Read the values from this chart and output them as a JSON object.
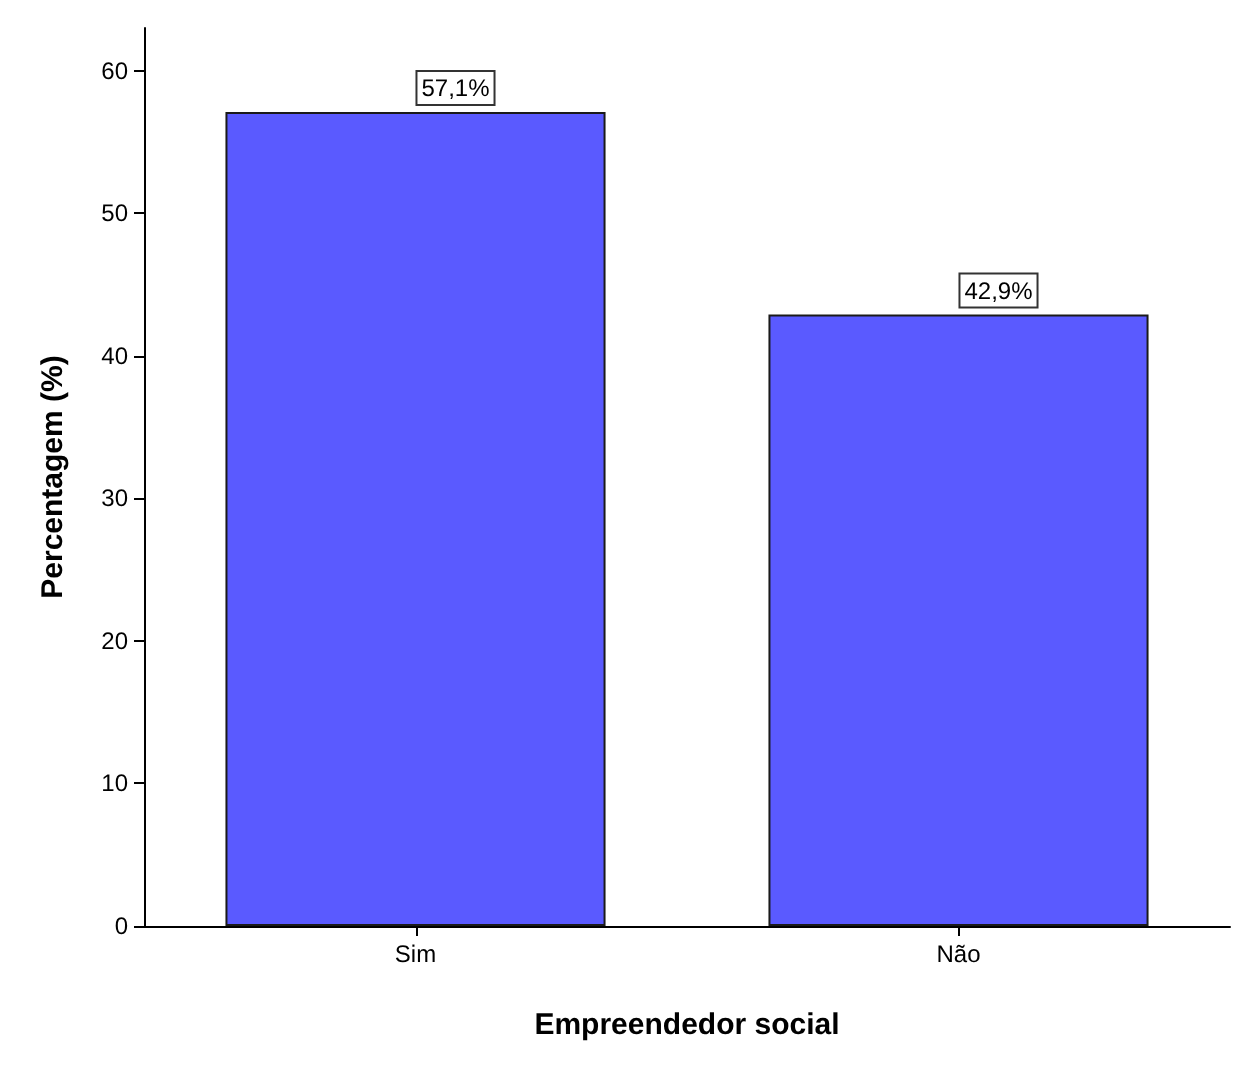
{
  "chart_data": {
    "type": "bar",
    "xlabel": "Empreendedor social",
    "ylabel": "Percentagem (%)",
    "categories": [
      "Sim",
      "Não"
    ],
    "values": [
      57.1,
      42.9
    ],
    "value_labels": [
      "57,1%",
      "42,9%"
    ],
    "color": "#5a5aff",
    "ylim": [
      0,
      63
    ],
    "yticks": [
      0,
      10,
      20,
      30,
      40,
      50,
      60
    ],
    "grid": false
  }
}
